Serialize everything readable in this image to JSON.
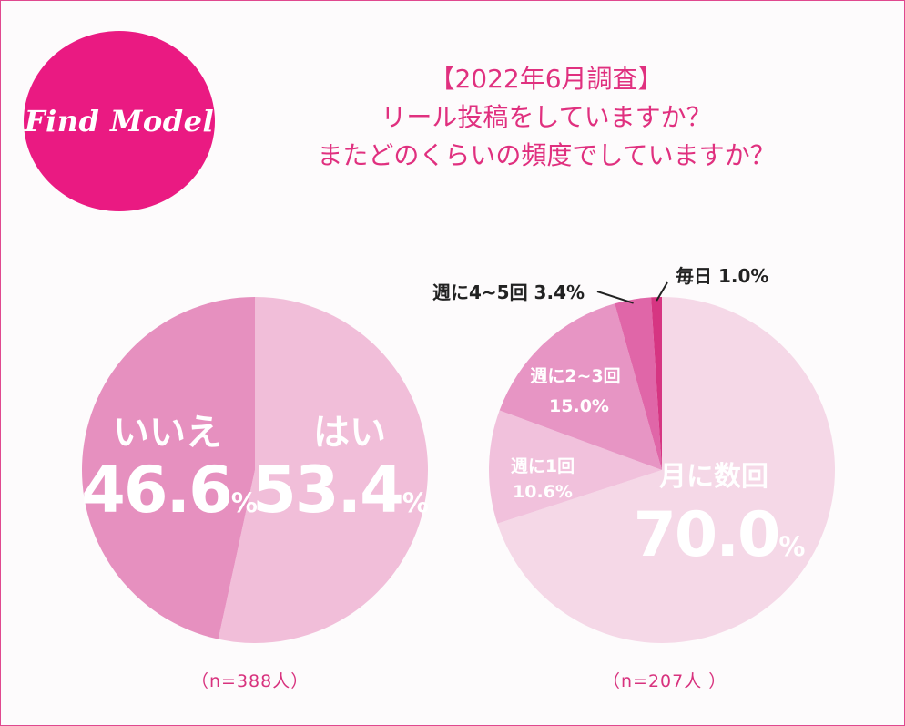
{
  "logo": {
    "text": "Find Model"
  },
  "title": {
    "line1": "【2022年6月調査】",
    "line2": "リール投稿をしていますか？",
    "line3": "またどのくらいの頻度でしていますか？"
  },
  "colors": {
    "accent": "#ea1a82",
    "title": "#e0307f",
    "yes": "#f1bed9",
    "no": "#e690bf",
    "monthly": "#f5d8e7",
    "weekly1": "#f1c1dc",
    "weekly23": "#e795c4",
    "weekly45": "#e066a8",
    "daily": "#d63582"
  },
  "chart_data": [
    {
      "type": "pie",
      "title": "リール投稿をしていますか？",
      "note": "（n=388人）",
      "slices": [
        {
          "label": "はい",
          "value": 53.4,
          "value_label": "53.4",
          "unit": "%"
        },
        {
          "label": "いいえ",
          "value": 46.6,
          "value_label": "46.6",
          "unit": "%"
        }
      ],
      "start": "12 o'clock",
      "direction": "clockwise"
    },
    {
      "type": "pie",
      "title": "またどのくらいの頻度でしていますか？",
      "note": "（n=207人 ）",
      "slices": [
        {
          "label": "月に数回",
          "value": 70.0,
          "value_label": "70.0",
          "unit": "%"
        },
        {
          "label": "週に1回",
          "value": 10.6,
          "value_label": "10.6%"
        },
        {
          "label": "週に2~3回",
          "value": 15.0,
          "value_label": "15.0%"
        },
        {
          "label": "週に4~5回 3.4%",
          "value": 3.4
        },
        {
          "label": "毎日 1.0%",
          "value": 1.0
        }
      ],
      "start": "12 o'clock",
      "direction": "clockwise"
    }
  ]
}
